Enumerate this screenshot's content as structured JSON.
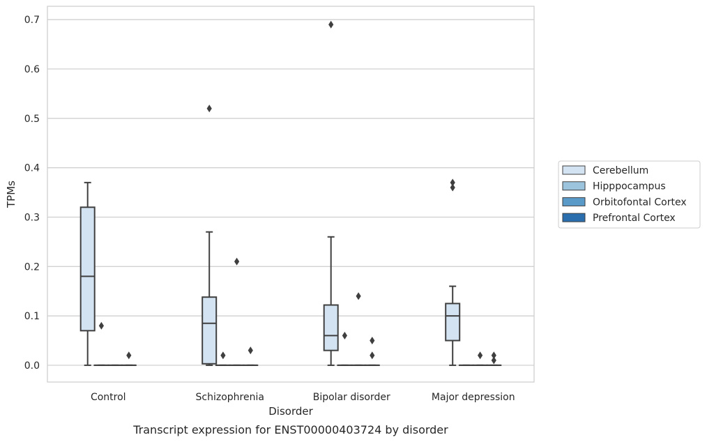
{
  "caption": "Transcript expression for ENST00000403724 by disorder",
  "chart_data": {
    "type": "box",
    "xlabel": "Disorder",
    "ylabel": "TPMs",
    "ylim": [
      -0.034,
      0.727
    ],
    "yticks": [
      0.0,
      0.1,
      0.2,
      0.3,
      0.4,
      0.5,
      0.6,
      0.7
    ],
    "ytick_labels": [
      "0.0",
      "0.1",
      "0.2",
      "0.3",
      "0.4",
      "0.5",
      "0.6",
      "0.7"
    ],
    "grid": "horizontal",
    "legend_placement": "outside right",
    "categories": [
      "Control",
      "Schizophrenia",
      "Bipolar disorder",
      "Major depression"
    ],
    "series": [
      {
        "name": "Cerebellum",
        "color": "#d4e3f1",
        "boxes": [
          {
            "whislo": 0.0,
            "q1": 0.07,
            "med": 0.18,
            "q3": 0.32,
            "whishi": 0.37,
            "fliers": []
          },
          {
            "whislo": 0.0,
            "q1": 0.003,
            "med": 0.085,
            "q3": 0.138,
            "whishi": 0.27,
            "fliers": [
              0.52
            ]
          },
          {
            "whislo": 0.0,
            "q1": 0.03,
            "med": 0.06,
            "q3": 0.122,
            "whishi": 0.26,
            "fliers": [
              0.69
            ]
          },
          {
            "whislo": 0.0,
            "q1": 0.05,
            "med": 0.1,
            "q3": 0.125,
            "whishi": 0.16,
            "fliers": [
              0.36,
              0.37
            ]
          }
        ]
      },
      {
        "name": "Hipppocampus",
        "color": "#9cc4dd",
        "boxes": [
          {
            "whislo": 0.0,
            "q1": 0.0,
            "med": 0.0,
            "q3": 0.0,
            "whishi": 0.0,
            "fliers": [
              0.08
            ]
          },
          {
            "whislo": 0.0,
            "q1": 0.0,
            "med": 0.0,
            "q3": 0.0,
            "whishi": 0.0,
            "fliers": [
              0.02
            ]
          },
          {
            "whislo": 0.0,
            "q1": 0.0,
            "med": 0.0,
            "q3": 0.0,
            "whishi": 0.0,
            "fliers": [
              0.06
            ]
          },
          {
            "whislo": 0.0,
            "q1": 0.0,
            "med": 0.0,
            "q3": 0.0,
            "whishi": 0.0,
            "fliers": []
          }
        ]
      },
      {
        "name": "Orbitofontal Cortex",
        "color": "#5a9ac8",
        "boxes": [
          {
            "whislo": 0.0,
            "q1": 0.0,
            "med": 0.0,
            "q3": 0.0,
            "whishi": 0.0,
            "fliers": []
          },
          {
            "whislo": 0.0,
            "q1": 0.0,
            "med": 0.0,
            "q3": 0.0,
            "whishi": 0.0,
            "fliers": [
              0.21
            ]
          },
          {
            "whislo": 0.0,
            "q1": 0.0,
            "med": 0.0,
            "q3": 0.0,
            "whishi": 0.0,
            "fliers": [
              0.14
            ]
          },
          {
            "whislo": 0.0,
            "q1": 0.0,
            "med": 0.0,
            "q3": 0.0,
            "whishi": 0.0,
            "fliers": [
              0.02
            ]
          }
        ]
      },
      {
        "name": "Prefrontal Cortex",
        "color": "#2a6eae",
        "boxes": [
          {
            "whislo": 0.0,
            "q1": 0.0,
            "med": 0.0,
            "q3": 0.0,
            "whishi": 0.0,
            "fliers": [
              0.02
            ]
          },
          {
            "whislo": 0.0,
            "q1": 0.0,
            "med": 0.0,
            "q3": 0.0,
            "whishi": 0.0,
            "fliers": [
              0.03
            ]
          },
          {
            "whislo": 0.0,
            "q1": 0.0,
            "med": 0.0,
            "q3": 0.0,
            "whishi": 0.0,
            "fliers": [
              0.02,
              0.05
            ]
          },
          {
            "whislo": 0.0,
            "q1": 0.0,
            "med": 0.0,
            "q3": 0.0,
            "whishi": 0.0,
            "fliers": [
              0.01,
              0.02
            ]
          }
        ]
      }
    ]
  }
}
